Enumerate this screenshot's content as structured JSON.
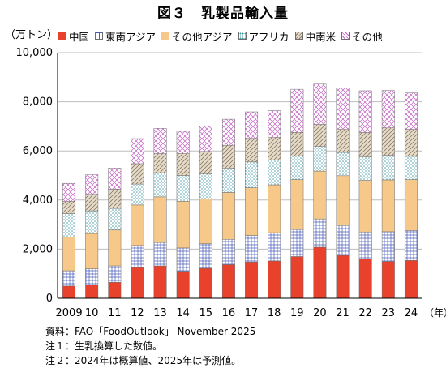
{
  "title": "図３　乳製品輸入量",
  "unit_label": "（万トン）",
  "x_unit_label": "（年）",
  "colors": {
    "china": "#e8412c",
    "se_asia": "#ffffff",
    "other_asia": "#f6c98a",
    "africa": "#ffffff",
    "central_south_america": "#e6dccb",
    "other": "#ffffff"
  },
  "chart_data": {
    "type": "bar",
    "stacked": true,
    "title": "図３　乳製品輸入量",
    "ylabel": "（万トン）",
    "xlabel": "（年）",
    "ylim": [
      0,
      10000
    ],
    "yticks": [
      "0",
      "2,000",
      "4,000",
      "6,000",
      "8,000",
      "10,000"
    ],
    "grid": true,
    "legend_position": "top",
    "categories": [
      "2009",
      "10",
      "11",
      "12",
      "13",
      "14",
      "15",
      "16",
      "17",
      "18",
      "19",
      "20",
      "21",
      "22",
      "23",
      "24"
    ],
    "series": [
      {
        "name": "中国",
        "key": "china",
        "pattern": "solid",
        "values": [
          500,
          550,
          650,
          1250,
          1320,
          1100,
          1220,
          1370,
          1480,
          1520,
          1700,
          2080,
          1750,
          1600,
          1500,
          1540
        ]
      },
      {
        "name": "東南アジア",
        "key": "se_asia",
        "pattern": "grid",
        "values": [
          620,
          650,
          670,
          900,
          950,
          950,
          1000,
          1030,
          1080,
          1150,
          1100,
          1150,
          1220,
          1100,
          1210,
          1220
        ]
      },
      {
        "name": "その他アジア",
        "key": "other_asia",
        "pattern": "solid",
        "values": [
          1380,
          1440,
          1460,
          1650,
          1860,
          1900,
          1820,
          1910,
          1940,
          1950,
          2030,
          1950,
          2020,
          2100,
          2110,
          2070
        ]
      },
      {
        "name": "アフリカ",
        "key": "africa",
        "pattern": "dots",
        "values": [
          950,
          920,
          880,
          850,
          980,
          1050,
          1020,
          980,
          1050,
          1000,
          970,
          1000,
          950,
          950,
          1000,
          950
        ]
      },
      {
        "name": "中南米",
        "key": "central_south_america",
        "pattern": "hatch",
        "values": [
          500,
          670,
          780,
          830,
          790,
          900,
          920,
          940,
          960,
          940,
          950,
          900,
          950,
          1000,
          1120,
          1100
        ]
      },
      {
        "name": "その他",
        "key": "other",
        "pattern": "diamond",
        "values": [
          730,
          800,
          860,
          1020,
          1020,
          900,
          1030,
          1060,
          1080,
          1080,
          1760,
          1640,
          1680,
          1700,
          1520,
          1480
        ]
      }
    ]
  },
  "notes": [
    "資料：FAO「FoodOutlook」 November 2025",
    "注１：生乳換算した数値。",
    "注２：2024年は概算値、2025年は予測値。"
  ]
}
